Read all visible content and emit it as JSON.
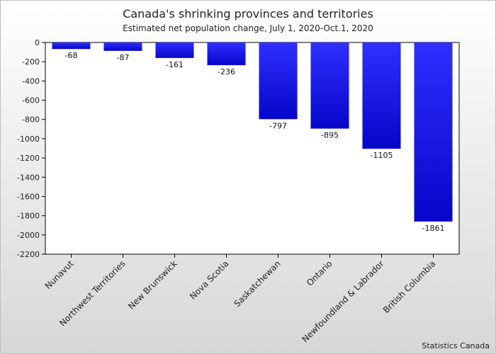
{
  "chart_data": {
    "type": "bar",
    "title": "Canada's shrinking provinces and territories",
    "subtitle": "Estimated net population change, July 1, 2020-Oct.1, 2020",
    "categories": [
      "Nunavut",
      "Northwest Territories",
      "New Brunswick",
      "Nova Scotia",
      "Saskatchewan",
      "Ontario",
      "Newfoundland & Labrador",
      "British Columbia"
    ],
    "values": [
      -68,
      -87,
      -161,
      -236,
      -797,
      -895,
      -1105,
      -1861
    ],
    "ylim": [
      -2200,
      0
    ],
    "yticks": [
      0,
      -200,
      -400,
      -600,
      -800,
      -1000,
      -1200,
      -1400,
      -1600,
      -1800,
      -2000,
      -2200
    ],
    "xlabel": "",
    "ylabel": "",
    "grid": false,
    "colors": {
      "bar_top": "#2f2fff",
      "bar_bottom": "#0606c9"
    }
  },
  "source": "Statistics Canada"
}
